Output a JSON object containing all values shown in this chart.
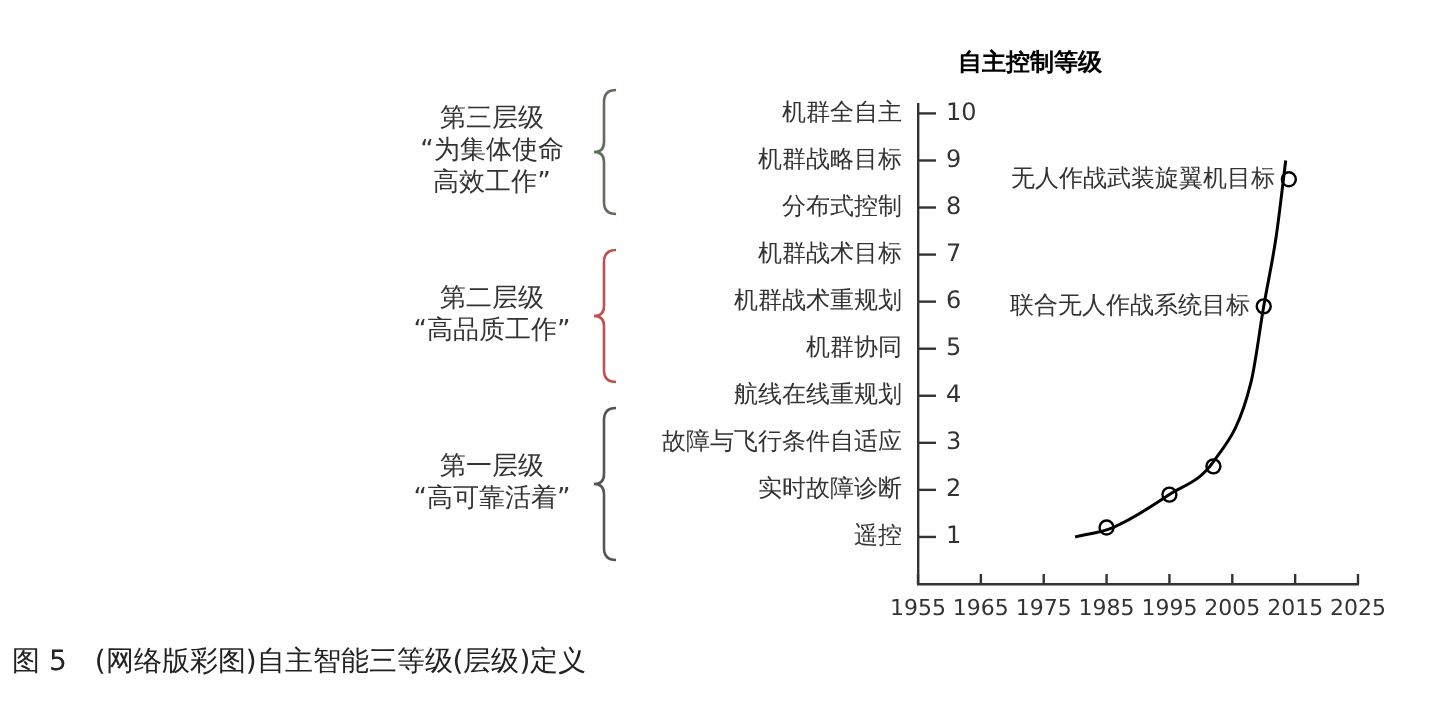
{
  "chart_data": {
    "type": "scatter",
    "ylabel": "自主控制等级",
    "xlim": [
      1955,
      2025
    ],
    "xticks": [
      1955,
      1965,
      1975,
      1985,
      1995,
      2005,
      2015,
      2025
    ],
    "ylim": [
      0,
      10.2
    ],
    "yticks": [
      1,
      2,
      3,
      4,
      5,
      6,
      7,
      8,
      9,
      10
    ],
    "grid": false,
    "legend": false,
    "series": [
      {
        "type": "line",
        "color": "#000000",
        "marker": "none",
        "x": [
          1980,
          1986,
          1995,
          2002,
          2008,
          2010,
          2012,
          2013.5
        ],
        "values": [
          1.0,
          1.2,
          1.9,
          2.6,
          4.3,
          5.9,
          7.4,
          9.0
        ]
      },
      {
        "color": "#000000",
        "marker": "circle",
        "x": [
          1985,
          1995,
          2002,
          2010,
          2014
        ],
        "values": [
          1.2,
          1.9,
          2.5,
          5.9,
          8.6
        ]
      }
    ],
    "annotations": [
      {
        "text": "无人作战武装旋翼机目标",
        "x": 2014,
        "y": 8.6
      },
      {
        "text": "联合无人作战系统目标",
        "x": 2010,
        "y": 5.9
      },
      "遥控",
      "实时故障诊断",
      "故障与飞行条件自适应",
      "航线在线重规划",
      "机群协同",
      "机群战术重规划",
      "机群战术目标",
      "分布式控制",
      "机群战略目标",
      "机群全自主",
      "第三层级",
      "“为集体使命高效工作”",
      "第二层级",
      "“高品质工作”",
      "第一层级",
      "“高可靠活着”",
      "图 5　(网络版彩图)自主智能三等级(层级)定义"
    ]
  }
}
